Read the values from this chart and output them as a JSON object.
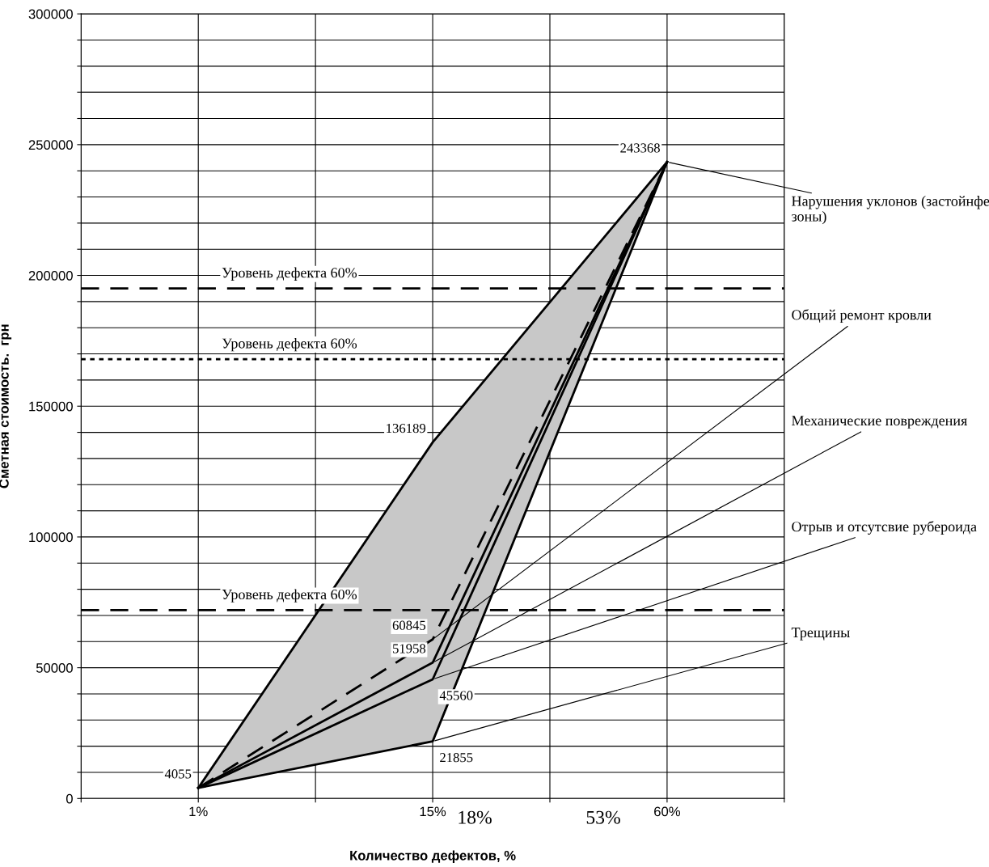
{
  "chart_data": {
    "type": "line",
    "xlabel": "Количество дефектов, %",
    "ylabel": "Сметная стоимость.  грн",
    "categories": [
      null,
      "1%",
      null,
      "15%",
      null,
      "60%",
      null
    ],
    "series": [
      {
        "color": "#000000",
        "values": [
          null,
          4055,
          null,
          136189,
          null,
          243368,
          null
        ],
        "lower": [
          null,
          4055,
          null,
          21855,
          null,
          243368,
          null
        ],
        "upper": [
          null,
          4055,
          null,
          136189,
          null,
          243368,
          null
        ],
        "value_labels": [
          null,
          "4055",
          null,
          "136189",
          null,
          "243368",
          null
        ]
      },
      {
        "color": "#000000",
        "values": [
          null,
          4055,
          null,
          60845,
          null,
          243368,
          null
        ],
        "line_style": "dashed",
        "value_labels": [
          null,
          null,
          null,
          "60845",
          null,
          null,
          null
        ]
      },
      {
        "color": "#000000",
        "values": [
          null,
          4055,
          null,
          51958,
          null,
          243368,
          null
        ],
        "value_labels": [
          null,
          null,
          null,
          "51958",
          null,
          null,
          null
        ]
      },
      {
        "color": "#000000",
        "values": [
          null,
          4055,
          null,
          45560,
          null,
          243368,
          null
        ],
        "value_labels": [
          null,
          null,
          null,
          "45560",
          null,
          null,
          null
        ]
      },
      {
        "color": "#000000",
        "values": [
          null,
          4055,
          null,
          21855,
          null,
          243368,
          null
        ],
        "value_labels": [
          null,
          null,
          null,
          "21855",
          null,
          null,
          null
        ]
      }
    ],
    "ylim": [
      0,
      300000
    ],
    "yticks": [
      0,
      {
        "value": 10000,
        "label": null
      },
      {
        "value": 20000,
        "label": null
      },
      {
        "value": 30000,
        "label": null
      },
      {
        "value": 40000,
        "label": null
      },
      50000,
      {
        "value": 60000,
        "label": null
      },
      {
        "value": 70000,
        "label": null
      },
      {
        "value": 80000,
        "label": null
      },
      {
        "value": 90000,
        "label": null
      },
      100000,
      {
        "value": 110000,
        "label": null
      },
      {
        "value": 120000,
        "label": null
      },
      {
        "value": 130000,
        "label": null
      },
      {
        "value": 140000,
        "label": null
      },
      150000,
      {
        "value": 160000,
        "label": null
      },
      {
        "value": 170000,
        "label": null
      },
      {
        "value": 180000,
        "label": null
      },
      {
        "value": 190000,
        "label": null
      },
      200000,
      {
        "value": 210000,
        "label": null
      },
      {
        "value": 220000,
        "label": null
      },
      {
        "value": 230000,
        "label": null
      },
      {
        "value": 240000,
        "label": null
      },
      250000,
      {
        "value": 260000,
        "label": null
      },
      {
        "value": 270000,
        "label": null
      },
      {
        "value": 280000,
        "label": null
      },
      {
        "value": 290000,
        "label": null
      },
      300000
    ],
    "grid": true,
    "legend": false,
    "ref_lines": [
      {
        "axis": "y",
        "value": 195000,
        "label": "Уровень дефекта 60%",
        "color": "#000000",
        "line_style": "dashed"
      },
      {
        "axis": "y",
        "value": 168000,
        "label": "Уровень дефекта 60%",
        "color": "#000000",
        "line_style": "dotted"
      },
      {
        "axis": "y",
        "value": 72000,
        "label": "Уровень дефекта 60%",
        "color": "#000000",
        "line_style": "dashed"
      }
    ],
    "annotations": [
      {
        "text": "Нарушения уклонов (застойнфе\nзоны)",
        "x": "60%",
        "y": 243368
      },
      {
        "text": "Общий ремонт кровли",
        "x": "15%",
        "y": 60845
      },
      {
        "text": "Механические повреждения",
        "x": "15%",
        "y": 51958
      },
      {
        "text": "Отрыв и отсутсвие рубероида",
        "x": "15%",
        "y": 45560
      },
      {
        "text": "Трещины",
        "x": "15%",
        "y": 21855
      },
      "18%",
      "53%"
    ]
  }
}
